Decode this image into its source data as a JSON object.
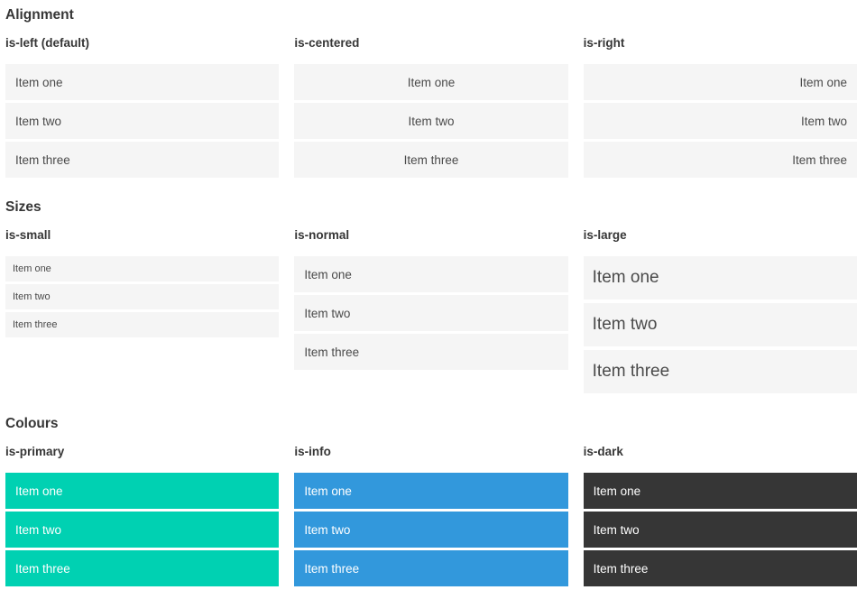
{
  "colors": {
    "primary": "#00d1b2",
    "info": "#3298dc",
    "dark": "#363636",
    "item_background": "#f5f5f5",
    "item_text": "#4a4a4a",
    "heading_text": "#363636"
  },
  "sections": [
    {
      "title": "Alignment",
      "columns": [
        {
          "heading": "is-left (default)",
          "items": [
            "Item one",
            "Item two",
            "Item three"
          ]
        },
        {
          "heading": "is-centered",
          "items": [
            "Item one",
            "Item two",
            "Item three"
          ]
        },
        {
          "heading": "is-right",
          "items": [
            "Item one",
            "Item two",
            "Item three"
          ]
        }
      ]
    },
    {
      "title": "Sizes",
      "columns": [
        {
          "heading": "is-small",
          "items": [
            "Item one",
            "Item two",
            "Item three"
          ]
        },
        {
          "heading": "is-normal",
          "items": [
            "Item one",
            "Item two",
            "Item three"
          ]
        },
        {
          "heading": "is-large",
          "items": [
            "Item one",
            "Item two",
            "Item three"
          ]
        }
      ]
    },
    {
      "title": "Colours",
      "columns": [
        {
          "heading": "is-primary",
          "items": [
            "Item one",
            "Item two",
            "Item three"
          ]
        },
        {
          "heading": "is-info",
          "items": [
            "Item one",
            "Item two",
            "Item three"
          ]
        },
        {
          "heading": "is-dark",
          "items": [
            "Item one",
            "Item two",
            "Item three"
          ]
        }
      ]
    }
  ]
}
